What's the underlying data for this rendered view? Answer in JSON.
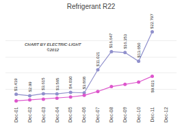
{
  "chart_data": {
    "type": "line",
    "title": "Refrigerant R22",
    "categories": [
      "Dec-01",
      "Dec-02",
      "Dec-03",
      "Dec-04",
      "Dec-05",
      "Dec-06",
      "Dec-07",
      "Dec-08",
      "Dec-09",
      "Dec-10",
      "Dec-11",
      "Dec-12"
    ],
    "series": [
      {
        "color": "#9090cc",
        "marker": "circle",
        "values": [
          3.419,
          2.99,
          3.615,
          3.565,
          4.03,
          3.868,
          11.021,
          16.647,
          16.353,
          13.65,
          22.797,
          null
        ],
        "value_labels": [
          "$3.419",
          "$2.99",
          "$3.615",
          "$3.565",
          "$4.030",
          "$3.868",
          "$11.021",
          "$16.647",
          "$16.353",
          "$13.650",
          "$22.797",
          null
        ]
      },
      {
        "color": "#dd55cc",
        "marker": "circle",
        "values": [
          1.4,
          1.7,
          1.9,
          2.2,
          2.6,
          3.1,
          4.3,
          5.8,
          6.5,
          7.2,
          9.021,
          null
        ],
        "value_labels": [
          null,
          null,
          null,
          null,
          null,
          null,
          null,
          null,
          null,
          null,
          "$9.021",
          null
        ]
      }
    ],
    "ylim": [
      0,
      25
    ],
    "yticks": [
      0,
      5,
      10,
      15,
      20,
      25
    ],
    "grid": true,
    "tick_labels": "x",
    "annotations": [
      "CHART BY ELECTRIC-LIGHT",
      "©2012"
    ]
  }
}
